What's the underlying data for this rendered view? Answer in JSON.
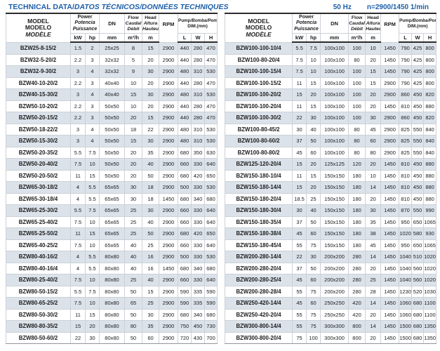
{
  "page": {
    "title_en": "TECHNICAL DATA/",
    "title_intl": "DATOS TÉCNICOS/DONNÉES TECHNIQUES",
    "frequency": "50 Hz",
    "speed": "n=2900/1450 1/min"
  },
  "colors": {
    "accent_blue": "#1c5fa8",
    "row_shade": "#dbe2ea",
    "border_dark": "#2b2b2b",
    "border_light": "#ccd1d7"
  },
  "header": {
    "model_en": "MODEL",
    "model_es": "MODELO",
    "model_fr": "MODÈLE",
    "power_en": "Power",
    "power_es": "Potencia",
    "power_fr": "Puissance",
    "dn": "DN",
    "flow_en": "Flow",
    "flow_es": "Caudal",
    "flow_fr": "Débit",
    "head_en": "Head",
    "head_es": "Altura",
    "head_fr": "Hauteur",
    "rpm": "RPM",
    "dim_en": "Pump",
    "dim_rest": "/Bomba/Pompe",
    "dim_line2": "DIM.(mm)",
    "units": {
      "kw": "kW",
      "hp": "hp",
      "dn": "mm",
      "flow": "m³/h",
      "head": "m",
      "l": "L",
      "w": "W",
      "h": "H"
    }
  },
  "tables": {
    "left": {
      "rows": [
        [
          "BZW25-8-15/2",
          "1.5",
          "2",
          "25x25",
          "8",
          "15",
          "2900",
          "440",
          "280",
          "470"
        ],
        [
          "BZW32-5-20/2",
          "2.2",
          "3",
          "32x32",
          "5",
          "20",
          "2900",
          "440",
          "280",
          "470"
        ],
        [
          "BZW32-9-30/2",
          "3",
          "4",
          "32x32",
          "9",
          "30",
          "2900",
          "480",
          "310",
          "530"
        ],
        [
          "BZW40-10-20/2",
          "2.2",
          "3",
          "40x40",
          "10",
          "20",
          "2900",
          "440",
          "280",
          "470"
        ],
        [
          "BZW40-15-30/2",
          "3",
          "4",
          "40x40",
          "15",
          "30",
          "2900",
          "480",
          "310",
          "530"
        ],
        [
          "BZW50-10-20/2",
          "2.2",
          "3",
          "50x50",
          "10",
          "20",
          "2900",
          "440",
          "280",
          "470"
        ],
        [
          "BZW50-20-15/2",
          "2.2",
          "3",
          "50x50",
          "20",
          "15",
          "2900",
          "440",
          "280",
          "470"
        ],
        [
          "BZW50-18-22/2",
          "3",
          "4",
          "50x50",
          "18",
          "22",
          "2900",
          "480",
          "310",
          "530"
        ],
        [
          "BZW50-15-30/2",
          "3",
          "4",
          "50x50",
          "15",
          "30",
          "2900",
          "480",
          "310",
          "530"
        ],
        [
          "BZW50-20-35/2",
          "5.5",
          "7.5",
          "50x50",
          "20",
          "35",
          "2900",
          "680",
          "350",
          "630"
        ],
        [
          "BZW50-20-40/2",
          "7.5",
          "10",
          "50x50",
          "20",
          "40",
          "2900",
          "660",
          "330",
          "640"
        ],
        [
          "BZW50-20-50/2",
          "11",
          "15",
          "50x50",
          "20",
          "50",
          "2900",
          "680",
          "420",
          "650"
        ],
        [
          "BZW65-30-18/2",
          "4",
          "5.5",
          "65x65",
          "30",
          "18",
          "2900",
          "500",
          "330",
          "530"
        ],
        [
          "BZW65-30-18/4",
          "4",
          "5.5",
          "65x65",
          "30",
          "18",
          "1450",
          "680",
          "340",
          "680"
        ],
        [
          "BZW65-25-30/2",
          "5.5",
          "7.5",
          "65x65",
          "25",
          "30",
          "2900",
          "660",
          "330",
          "640"
        ],
        [
          "BZW65-25-40/2",
          "7.5",
          "10",
          "65x65",
          "25",
          "40",
          "2900",
          "660",
          "330",
          "640"
        ],
        [
          "BZW65-25-50/2",
          "11",
          "15",
          "65x65",
          "25",
          "50",
          "2900",
          "680",
          "420",
          "650"
        ],
        [
          "BZW65-40-25/2",
          "7.5",
          "10",
          "65x65",
          "40",
          "25",
          "2900",
          "660",
          "330",
          "640"
        ],
        [
          "BZW80-40-16/2",
          "4",
          "5.5",
          "80x80",
          "40",
          "16",
          "2900",
          "500",
          "330",
          "530"
        ],
        [
          "BZW80-40-16/4",
          "4",
          "5.5",
          "80x80",
          "40",
          "16",
          "1450",
          "680",
          "340",
          "680"
        ],
        [
          "BZW80-25-40/2",
          "7.5",
          "10",
          "80x80",
          "25",
          "40",
          "2900",
          "660",
          "330",
          "640"
        ],
        [
          "BZW80-50-15/2",
          "5.5",
          "7.5",
          "80x80",
          "50",
          "15",
          "2900",
          "590",
          "335",
          "590"
        ],
        [
          "BZW80-65-25/2",
          "7.5",
          "10",
          "80x80",
          "65",
          "25",
          "2900",
          "590",
          "335",
          "590"
        ],
        [
          "BZW80-50-30/2",
          "11",
          "15",
          "80x80",
          "50",
          "30",
          "2900",
          "680",
          "340",
          "680"
        ],
        [
          "BZW80-80-35/2",
          "15",
          "20",
          "80x80",
          "80",
          "35",
          "2900",
          "750",
          "450",
          "730"
        ],
        [
          "BZW80-50-60/2",
          "22",
          "30",
          "80x80",
          "50",
          "60",
          "2900",
          "720",
          "430",
          "700"
        ]
      ]
    },
    "right": {
      "rows": [
        [
          "BZW100-100-10/4",
          "5.5",
          "7.5",
          "100x100",
          "100",
          "10",
          "1450",
          "790",
          "425",
          "800"
        ],
        [
          "BZW100-80-20/4",
          "7.5",
          "10",
          "100x100",
          "80",
          "20",
          "1450",
          "790",
          "425",
          "800"
        ],
        [
          "BZW100-100-15/4",
          "7.5",
          "10",
          "100x100",
          "100",
          "15",
          "1450",
          "790",
          "425",
          "800"
        ],
        [
          "BZW100-100-15/2",
          "11",
          "15",
          "100x100",
          "100",
          "15",
          "2900",
          "790",
          "425",
          "800"
        ],
        [
          "BZW100-100-20/2",
          "15",
          "20",
          "100x100",
          "100",
          "20",
          "2900",
          "860",
          "450",
          "820"
        ],
        [
          "BZW100-100-20/4",
          "11",
          "15",
          "100x100",
          "100",
          "20",
          "1450",
          "810",
          "450",
          "880"
        ],
        [
          "BZW100-100-30/2",
          "22",
          "30",
          "100x100",
          "100",
          "30",
          "2900",
          "860",
          "450",
          "820"
        ],
        [
          "BZW100-80-45/2",
          "30",
          "40",
          "100x100",
          "80",
          "45",
          "2900",
          "825",
          "550",
          "840"
        ],
        [
          "BZW100-80-60/2",
          "37",
          "50",
          "100x100",
          "80",
          "60",
          "2900",
          "825",
          "550",
          "840"
        ],
        [
          "BZW100-80-80/2",
          "45",
          "60",
          "100x100",
          "80",
          "80",
          "2900",
          "825",
          "550",
          "840"
        ],
        [
          "BZW125-120-20/4",
          "15",
          "20",
          "125x125",
          "120",
          "20",
          "1450",
          "810",
          "450",
          "880"
        ],
        [
          "BZW150-180-10/4",
          "11",
          "15",
          "150x150",
          "180",
          "10",
          "1450",
          "810",
          "450",
          "880"
        ],
        [
          "BZW150-180-14/4",
          "15",
          "20",
          "150x150",
          "180",
          "14",
          "1450",
          "810",
          "450",
          "880"
        ],
        [
          "BZW150-180-20/4",
          "18.5",
          "25",
          "150x150",
          "180",
          "20",
          "1450",
          "810",
          "450",
          "880"
        ],
        [
          "BZW150-180-30/4",
          "30",
          "40",
          "150x150",
          "180",
          "30",
          "1450",
          "870",
          "550",
          "990"
        ],
        [
          "BZW150-180-35/4",
          "37",
          "50",
          "150x150",
          "180",
          "35",
          "1450",
          "950",
          "650",
          "1065"
        ],
        [
          "BZW150-180-38/4",
          "45",
          "60",
          "150x150",
          "180",
          "38",
          "1450",
          "1020",
          "580",
          "930"
        ],
        [
          "BZW150-180-45/4",
          "55",
          "75",
          "150x150",
          "180",
          "45",
          "1450",
          "950",
          "650",
          "1065"
        ],
        [
          "BZW200-280-14/4",
          "22",
          "30",
          "200x200",
          "280",
          "14",
          "1450",
          "1040",
          "510",
          "1020"
        ],
        [
          "BZW200-280-20/4",
          "37",
          "50",
          "200x200",
          "280",
          "20",
          "1450",
          "1040",
          "560",
          "1020"
        ],
        [
          "BZW200-280-25/4",
          "45",
          "60",
          "200x200",
          "280",
          "25",
          "1450",
          "1040",
          "560",
          "1020"
        ],
        [
          "BZW200-280-28/4",
          "55",
          "75",
          "200x200",
          "280",
          "28",
          "1450",
          "1230",
          "520",
          "1030"
        ],
        [
          "BZW250-420-14/4",
          "45",
          "60",
          "250x250",
          "420",
          "14",
          "1450",
          "1060",
          "680",
          "1100"
        ],
        [
          "BZW250-420-20/4",
          "55",
          "75",
          "250x250",
          "420",
          "20",
          "1450",
          "1060",
          "680",
          "1100"
        ],
        [
          "BZW300-800-14/4",
          "55",
          "75",
          "300x300",
          "800",
          "14",
          "1450",
          "1500",
          "680",
          "1350"
        ],
        [
          "BZW300-800-20/4",
          "75",
          "100",
          "300x300",
          "800",
          "20",
          "1450",
          "1500",
          "680",
          "1350"
        ]
      ]
    }
  }
}
